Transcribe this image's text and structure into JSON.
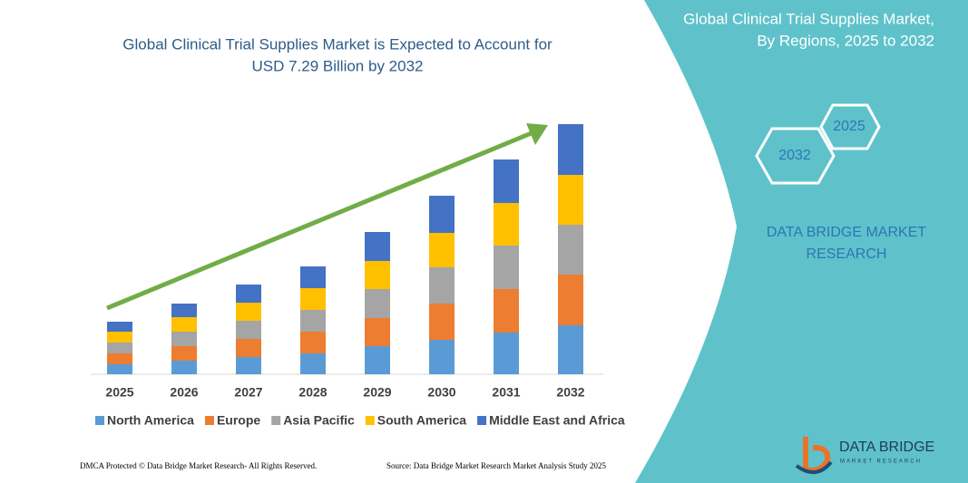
{
  "chart_data": {
    "type": "stacked-bar",
    "title": "Global Clinical Trial Supplies Market is Expected to Account for",
    "subtitle": "USD 7.29 Billion by 2032",
    "categories": [
      "2025",
      "2026",
      "2027",
      "2028",
      "2029",
      "2030",
      "2031",
      "2032"
    ],
    "series": [
      {
        "name": "North America",
        "color": "#5b9bd5",
        "values": [
          11,
          15,
          19,
          23,
          31,
          38,
          46,
          54
        ]
      },
      {
        "name": "Europe",
        "color": "#ed7d31",
        "values": [
          12,
          16,
          20,
          24,
          31,
          40,
          48,
          56
        ]
      },
      {
        "name": "Asia Pacific",
        "color": "#a5a5a5",
        "values": [
          12,
          16,
          20,
          24,
          32,
          40,
          48,
          55
        ]
      },
      {
        "name": "South America",
        "color": "#ffc000",
        "values": [
          12,
          16,
          20,
          24,
          31,
          38,
          47,
          55
        ]
      },
      {
        "name": "Middle East and Africa",
        "color": "#4472c4",
        "values": [
          11,
          15,
          20,
          24,
          32,
          41,
          48,
          56
        ]
      }
    ],
    "legend": "bottom"
  },
  "panel": {
    "title_line1": "Global Clinical Trial Supplies Market,",
    "title_line2": "By Regions, 2025 to 2032",
    "hex_start": "2025",
    "hex_end": "2032",
    "brand_line1": "DATA BRIDGE MARKET",
    "brand_line2": "RESEARCH",
    "logo_text": "DATA BRIDGE",
    "logo_sub": "MARKET RESEARCH"
  },
  "footer": {
    "left": "DMCA Protected © Data Bridge Market Research- All Rights Reserved.",
    "right": "Source: Data Bridge Market Research Market Analysis Study 2025"
  }
}
